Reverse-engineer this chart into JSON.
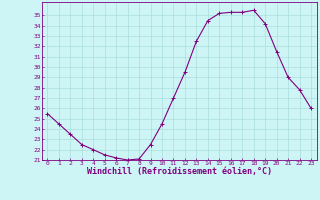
{
  "hours": [
    0,
    1,
    2,
    3,
    4,
    5,
    6,
    7,
    8,
    9,
    10,
    11,
    12,
    13,
    14,
    15,
    16,
    17,
    18,
    19,
    20,
    21,
    22,
    23
  ],
  "temps": [
    25.5,
    24.5,
    23.5,
    22.5,
    22.0,
    21.5,
    21.2,
    21.0,
    21.1,
    22.5,
    24.5,
    27.0,
    29.5,
    32.5,
    34.5,
    35.2,
    35.3,
    35.3,
    35.5,
    34.2,
    31.5,
    29.0,
    27.8,
    26.0
  ],
  "line_color": "#800080",
  "marker_color": "#800080",
  "bg_color": "#cef5f5",
  "grid_color": "#aadddd",
  "xlabel": "Windchill (Refroidissement éolien,°C)",
  "ylim": [
    21,
    36
  ],
  "xlim_min": -0.5,
  "xlim_max": 23.5,
  "yticks": [
    21,
    22,
    23,
    24,
    25,
    26,
    27,
    28,
    29,
    30,
    31,
    32,
    33,
    34,
    35
  ],
  "xticks": [
    0,
    1,
    2,
    3,
    4,
    5,
    6,
    7,
    8,
    9,
    10,
    11,
    12,
    13,
    14,
    15,
    16,
    17,
    18,
    19,
    20,
    21,
    22,
    23
  ],
  "tick_fontsize": 4.5,
  "xlabel_fontsize": 6.0,
  "line_width": 0.8,
  "marker_size": 3.0,
  "marker_ew": 0.7
}
